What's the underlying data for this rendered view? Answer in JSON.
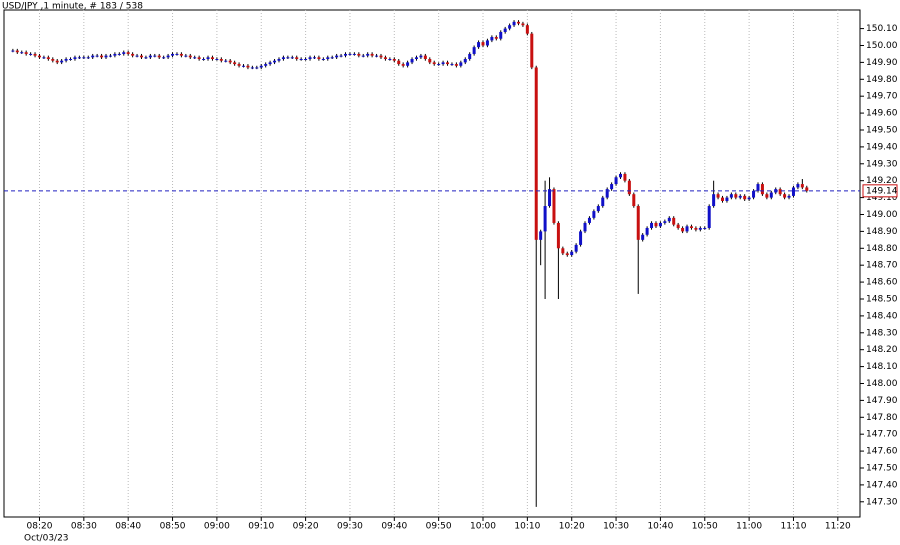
{
  "chart_data": {
    "type": "candlestick",
    "title": "USD/JPY ,1 minute, # 183 / 538",
    "date_label": "Oct/03/23",
    "up_color": "#1010c8",
    "down_color": "#c81010",
    "wick_color": "#000000",
    "x": [
      "08:14",
      "08:15",
      "08:16",
      "08:17",
      "08:18",
      "08:19",
      "08:20",
      "08:21",
      "08:22",
      "08:23",
      "08:24",
      "08:25",
      "08:26",
      "08:27",
      "08:28",
      "08:29",
      "08:30",
      "08:31",
      "08:32",
      "08:33",
      "08:34",
      "08:35",
      "08:36",
      "08:37",
      "08:38",
      "08:39",
      "08:40",
      "08:41",
      "08:42",
      "08:43",
      "08:44",
      "08:45",
      "08:46",
      "08:47",
      "08:48",
      "08:49",
      "08:50",
      "08:51",
      "08:52",
      "08:53",
      "08:54",
      "08:55",
      "08:56",
      "08:57",
      "08:58",
      "08:59",
      "09:00",
      "09:01",
      "09:02",
      "09:03",
      "09:04",
      "09:05",
      "09:06",
      "09:07",
      "09:08",
      "09:09",
      "09:10",
      "09:11",
      "09:12",
      "09:13",
      "09:14",
      "09:15",
      "09:16",
      "09:17",
      "09:18",
      "09:19",
      "09:20",
      "09:21",
      "09:22",
      "09:23",
      "09:24",
      "09:25",
      "09:26",
      "09:27",
      "09:28",
      "09:29",
      "09:30",
      "09:31",
      "09:32",
      "09:33",
      "09:34",
      "09:35",
      "09:36",
      "09:37",
      "09:38",
      "09:39",
      "09:40",
      "09:41",
      "09:42",
      "09:43",
      "09:44",
      "09:45",
      "09:46",
      "09:47",
      "09:48",
      "09:49",
      "09:50",
      "09:51",
      "09:52",
      "09:53",
      "09:54",
      "09:55",
      "09:56",
      "09:57",
      "09:58",
      "09:59",
      "10:00",
      "10:01",
      "10:02",
      "10:03",
      "10:04",
      "10:05",
      "10:06",
      "10:07",
      "10:08",
      "10:09",
      "10:10",
      "10:11",
      "10:12",
      "10:13",
      "10:14",
      "10:15",
      "10:16",
      "10:17",
      "10:18",
      "10:19",
      "10:20",
      "10:21",
      "10:22",
      "10:23",
      "10:24",
      "10:25",
      "10:26",
      "10:27",
      "10:28",
      "10:29",
      "10:30",
      "10:31",
      "10:32",
      "10:33",
      "10:34",
      "10:35",
      "10:36",
      "10:37",
      "10:38",
      "10:39",
      "10:40",
      "10:41",
      "10:42",
      "10:43",
      "10:44",
      "10:45",
      "10:46",
      "10:47",
      "10:48",
      "10:49",
      "10:50",
      "10:51",
      "10:52",
      "10:53",
      "10:54",
      "10:55",
      "10:56",
      "10:57",
      "10:58",
      "10:59",
      "11:00",
      "11:01",
      "11:02",
      "11:03",
      "11:04",
      "11:05",
      "11:06",
      "11:07",
      "11:08",
      "11:09",
      "11:10",
      "11:11",
      "11:12",
      "11:13"
    ],
    "open": [
      149.97,
      149.97,
      149.96,
      149.96,
      149.95,
      149.95,
      149.94,
      149.93,
      149.93,
      149.92,
      149.91,
      149.9,
      149.91,
      149.92,
      149.92,
      149.93,
      149.93,
      149.93,
      149.93,
      149.94,
      149.94,
      149.93,
      149.94,
      149.94,
      149.95,
      149.95,
      149.96,
      149.95,
      149.94,
      149.94,
      149.93,
      149.93,
      149.94,
      149.94,
      149.93,
      149.93,
      149.94,
      149.95,
      149.95,
      149.94,
      149.94,
      149.93,
      149.93,
      149.92,
      149.92,
      149.93,
      149.92,
      149.92,
      149.91,
      149.91,
      149.9,
      149.89,
      149.88,
      149.88,
      149.87,
      149.87,
      149.87,
      149.88,
      149.89,
      149.9,
      149.91,
      149.92,
      149.93,
      149.93,
      149.93,
      149.92,
      149.92,
      149.92,
      149.93,
      149.93,
      149.92,
      149.92,
      149.93,
      149.93,
      149.94,
      149.94,
      149.95,
      149.95,
      149.95,
      149.94,
      149.94,
      149.95,
      149.94,
      149.94,
      149.93,
      149.92,
      149.92,
      149.91,
      149.89,
      149.88,
      149.9,
      149.92,
      149.93,
      149.94,
      149.92,
      149.9,
      149.89,
      149.89,
      149.9,
      149.89,
      149.89,
      149.88,
      149.9,
      149.92,
      149.95,
      149.99,
      150.02,
      150.0,
      150.03,
      150.05,
      150.04,
      150.08,
      150.1,
      150.12,
      150.14,
      150.13,
      150.12,
      150.07,
      149.87,
      148.85,
      148.9,
      149.05,
      149.15,
      148.95,
      148.8,
      148.77,
      148.76,
      148.78,
      148.82,
      148.9,
      148.95,
      148.98,
      149.02,
      149.05,
      149.1,
      149.15,
      149.18,
      149.22,
      149.24,
      149.2,
      149.12,
      149.05,
      148.85,
      148.88,
      148.92,
      148.95,
      148.93,
      148.95,
      148.96,
      148.98,
      148.94,
      148.92,
      148.9,
      148.93,
      148.92,
      148.91,
      148.92,
      148.92,
      149.05,
      149.12,
      149.1,
      149.08,
      149.1,
      149.12,
      149.1,
      149.11,
      149.09,
      149.1,
      149.14,
      149.18,
      149.12,
      149.1,
      149.13,
      149.15,
      149.12,
      149.1,
      149.11,
      149.16,
      149.18,
      149.16
    ],
    "high": [
      149.98,
      149.98,
      149.97,
      149.97,
      149.96,
      149.96,
      149.95,
      149.94,
      149.94,
      149.93,
      149.92,
      149.92,
      149.93,
      149.93,
      149.94,
      149.94,
      149.94,
      149.94,
      149.95,
      149.95,
      149.95,
      149.95,
      149.95,
      149.96,
      149.96,
      149.97,
      149.97,
      149.96,
      149.95,
      149.95,
      149.94,
      149.95,
      149.95,
      149.95,
      149.94,
      149.95,
      149.96,
      149.96,
      149.96,
      149.95,
      149.95,
      149.94,
      149.94,
      149.93,
      149.94,
      149.94,
      149.93,
      149.93,
      149.92,
      149.92,
      149.91,
      149.9,
      149.89,
      149.89,
      149.88,
      149.88,
      149.89,
      149.9,
      149.91,
      149.92,
      149.93,
      149.94,
      149.94,
      149.94,
      149.94,
      149.93,
      149.93,
      149.94,
      149.94,
      149.94,
      149.93,
      149.94,
      149.94,
      149.95,
      149.95,
      149.96,
      149.96,
      149.96,
      149.96,
      149.95,
      149.96,
      149.96,
      149.95,
      149.95,
      149.94,
      149.93,
      149.93,
      149.92,
      149.9,
      149.91,
      149.93,
      149.94,
      149.95,
      149.95,
      149.93,
      149.91,
      149.9,
      149.91,
      149.91,
      149.9,
      149.9,
      149.91,
      149.93,
      149.96,
      150.0,
      150.03,
      150.03,
      150.04,
      150.06,
      150.06,
      150.09,
      150.11,
      150.13,
      150.15,
      150.15,
      150.14,
      150.13,
      150.08,
      149.88,
      148.91,
      149.2,
      149.22,
      149.16,
      148.96,
      148.81,
      148.78,
      148.79,
      148.83,
      148.91,
      148.96,
      148.99,
      149.03,
      149.06,
      149.11,
      149.16,
      149.19,
      149.23,
      149.25,
      149.25,
      149.21,
      149.13,
      149.06,
      148.89,
      148.93,
      148.96,
      148.96,
      148.96,
      148.97,
      148.99,
      148.99,
      148.95,
      148.93,
      148.94,
      148.94,
      148.93,
      148.93,
      148.93,
      149.06,
      149.2,
      149.13,
      149.11,
      149.11,
      149.13,
      149.13,
      149.12,
      149.12,
      149.11,
      149.15,
      149.19,
      149.19,
      149.13,
      149.14,
      149.16,
      149.16,
      149.13,
      149.12,
      149.17,
      149.19,
      149.21,
      149.17
    ],
    "low": [
      149.96,
      149.95,
      149.95,
      149.94,
      149.94,
      149.93,
      149.92,
      149.92,
      149.91,
      149.9,
      149.89,
      149.89,
      149.9,
      149.91,
      149.91,
      149.92,
      149.92,
      149.92,
      149.92,
      149.93,
      149.92,
      149.92,
      149.93,
      149.93,
      149.94,
      149.94,
      149.94,
      149.93,
      149.93,
      149.92,
      149.92,
      149.92,
      149.93,
      149.92,
      149.92,
      149.92,
      149.93,
      149.94,
      149.93,
      149.93,
      149.92,
      149.92,
      149.91,
      149.91,
      149.91,
      149.91,
      149.91,
      149.9,
      149.9,
      149.89,
      149.88,
      149.87,
      149.87,
      149.86,
      149.86,
      149.86,
      149.86,
      149.87,
      149.88,
      149.89,
      149.9,
      149.91,
      149.92,
      149.92,
      149.91,
      149.91,
      149.91,
      149.91,
      149.92,
      149.91,
      149.91,
      149.91,
      149.92,
      149.92,
      149.93,
      149.93,
      149.94,
      149.94,
      149.93,
      149.93,
      149.93,
      149.93,
      149.93,
      149.92,
      149.91,
      149.91,
      149.9,
      149.88,
      149.87,
      149.87,
      149.89,
      149.91,
      149.92,
      149.91,
      149.89,
      149.88,
      149.88,
      149.88,
      149.88,
      149.88,
      149.87,
      149.87,
      149.89,
      149.91,
      149.94,
      149.98,
      149.99,
      149.99,
      150.02,
      150.03,
      150.03,
      150.07,
      150.09,
      150.11,
      150.12,
      150.11,
      150.06,
      149.86,
      147.27,
      148.7,
      148.5,
      149.04,
      148.94,
      148.5,
      148.76,
      148.75,
      148.75,
      148.77,
      148.81,
      148.89,
      148.94,
      148.97,
      149.01,
      149.04,
      149.09,
      149.14,
      149.17,
      149.21,
      149.19,
      149.11,
      149.04,
      148.53,
      148.84,
      148.87,
      148.91,
      148.92,
      148.92,
      148.94,
      148.95,
      148.93,
      148.91,
      148.89,
      148.89,
      148.91,
      148.9,
      148.9,
      148.91,
      148.91,
      149.04,
      149.09,
      149.07,
      149.07,
      149.09,
      149.09,
      149.09,
      149.08,
      149.08,
      149.09,
      149.13,
      149.11,
      149.09,
      149.09,
      149.12,
      149.11,
      149.09,
      149.09,
      149.1,
      149.15,
      149.15,
      149.13
    ],
    "close": [
      149.97,
      149.96,
      149.96,
      149.95,
      149.95,
      149.94,
      149.93,
      149.93,
      149.92,
      149.91,
      149.9,
      149.91,
      149.92,
      149.92,
      149.93,
      149.93,
      149.93,
      149.93,
      149.94,
      149.94,
      149.93,
      149.94,
      149.94,
      149.95,
      149.95,
      149.96,
      149.95,
      149.94,
      149.94,
      149.93,
      149.93,
      149.94,
      149.94,
      149.93,
      149.93,
      149.94,
      149.95,
      149.95,
      149.94,
      149.94,
      149.93,
      149.93,
      149.92,
      149.92,
      149.93,
      149.92,
      149.92,
      149.91,
      149.91,
      149.9,
      149.89,
      149.88,
      149.88,
      149.87,
      149.87,
      149.87,
      149.88,
      149.89,
      149.9,
      149.91,
      149.92,
      149.93,
      149.93,
      149.93,
      149.92,
      149.92,
      149.92,
      149.93,
      149.93,
      149.92,
      149.92,
      149.93,
      149.93,
      149.94,
      149.94,
      149.95,
      149.95,
      149.95,
      149.94,
      149.94,
      149.95,
      149.94,
      149.94,
      149.93,
      149.92,
      149.92,
      149.91,
      149.89,
      149.88,
      149.9,
      149.92,
      149.93,
      149.94,
      149.92,
      149.9,
      149.89,
      149.89,
      149.9,
      149.89,
      149.89,
      149.88,
      149.9,
      149.92,
      149.95,
      149.99,
      150.02,
      150.0,
      150.03,
      150.05,
      150.04,
      150.08,
      150.1,
      150.12,
      150.14,
      150.13,
      150.12,
      150.07,
      149.87,
      148.85,
      148.9,
      149.05,
      149.15,
      148.95,
      148.8,
      148.77,
      148.76,
      148.78,
      148.82,
      148.9,
      148.95,
      148.98,
      149.02,
      149.05,
      149.1,
      149.15,
      149.18,
      149.22,
      149.24,
      149.2,
      149.12,
      149.05,
      148.85,
      148.88,
      148.92,
      148.95,
      148.93,
      148.95,
      148.96,
      148.98,
      148.94,
      148.92,
      148.9,
      148.93,
      148.92,
      148.91,
      148.92,
      148.92,
      149.05,
      149.12,
      149.1,
      149.08,
      149.1,
      149.12,
      149.1,
      149.11,
      149.09,
      149.1,
      149.14,
      149.18,
      149.12,
      149.1,
      149.13,
      149.15,
      149.12,
      149.1,
      149.11,
      149.16,
      149.18,
      149.16,
      149.14
    ],
    "last_price": {
      "value": 149.14,
      "label": "149.14"
    },
    "last_price_color": "#2020c0",
    "xlim": [
      "08:12",
      "11:25"
    ],
    "xticks": [
      "08:20",
      "08:30",
      "08:40",
      "08:50",
      "09:00",
      "09:10",
      "09:20",
      "09:30",
      "09:40",
      "09:50",
      "10:00",
      "10:10",
      "10:20",
      "10:30",
      "10:40",
      "10:50",
      "11:00",
      "11:10",
      "11:20"
    ],
    "ylim": [
      147.21,
      150.21
    ],
    "yticks": [
      {
        "value": 147.3,
        "label": "147.30"
      },
      {
        "value": 147.4,
        "label": "147.40"
      },
      {
        "value": 147.5,
        "label": "147.50"
      },
      {
        "value": 147.6,
        "label": "147.60"
      },
      {
        "value": 147.7,
        "label": "147.70"
      },
      {
        "value": 147.8,
        "label": "147.80"
      },
      {
        "value": 147.9,
        "label": "147.90"
      },
      {
        "value": 148.0,
        "label": "148.00"
      },
      {
        "value": 148.1,
        "label": "148.10"
      },
      {
        "value": 148.2,
        "label": "148.20"
      },
      {
        "value": 148.3,
        "label": "148.30"
      },
      {
        "value": 148.4,
        "label": "148.40"
      },
      {
        "value": 148.5,
        "label": "148.50"
      },
      {
        "value": 148.6,
        "label": "148.60"
      },
      {
        "value": 148.7,
        "label": "148.70"
      },
      {
        "value": 148.8,
        "label": "148.80"
      },
      {
        "value": 148.9,
        "label": "148.90"
      },
      {
        "value": 149.0,
        "label": "149.00"
      },
      {
        "value": 149.1,
        "label": "149.10"
      },
      {
        "value": 149.2,
        "label": "149.20"
      },
      {
        "value": 149.3,
        "label": "149.30"
      },
      {
        "value": 149.4,
        "label": "149.40"
      },
      {
        "value": 149.5,
        "label": "149.50"
      },
      {
        "value": 149.6,
        "label": "149.60"
      },
      {
        "value": 149.7,
        "label": "149.70"
      },
      {
        "value": 149.8,
        "label": "149.80"
      },
      {
        "value": 149.9,
        "label": "149.90"
      },
      {
        "value": 150.0,
        "label": "150.00"
      },
      {
        "value": 150.1,
        "label": "150.10"
      }
    ],
    "grid": true
  }
}
